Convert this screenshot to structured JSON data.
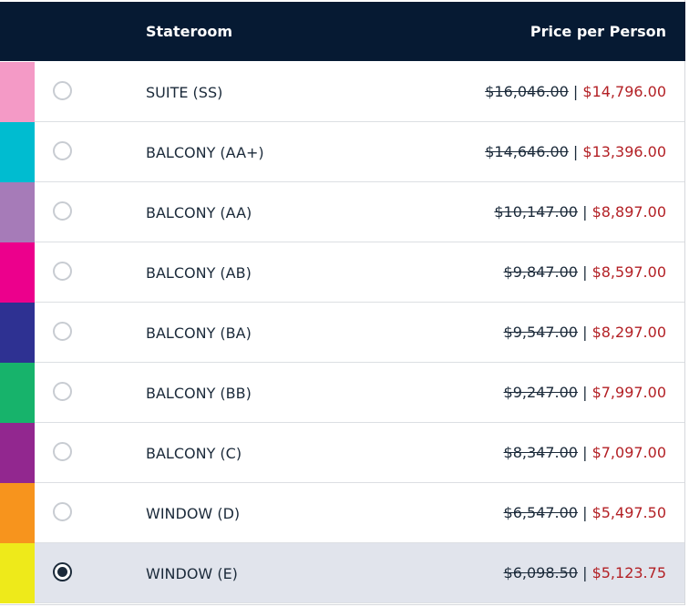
{
  "header": {
    "stateroom": "Stateroom",
    "price": "Price per Person"
  },
  "price_separator": "|",
  "rows": [
    {
      "name": "SUITE (SS)",
      "old_price": "$16,046.00",
      "new_price": "$14,796.00",
      "color": "#f49ac6",
      "selected": false
    },
    {
      "name": "BALCONY (AA+)",
      "old_price": "$14,646.00",
      "new_price": "$13,396.00",
      "color": "#00bcd0",
      "selected": false
    },
    {
      "name": "BALCONY (AA)",
      "old_price": "$10,147.00",
      "new_price": "$8,897.00",
      "color": "#a67bb8",
      "selected": false
    },
    {
      "name": "BALCONY (AB)",
      "old_price": "$9,847.00",
      "new_price": "$8,597.00",
      "color": "#ec008c",
      "selected": false
    },
    {
      "name": "BALCONY (BA)",
      "old_price": "$9,547.00",
      "new_price": "$8,297.00",
      "color": "#2e3192",
      "selected": false
    },
    {
      "name": "BALCONY (BB)",
      "old_price": "$9,247.00",
      "new_price": "$7,997.00",
      "color": "#17b36b",
      "selected": false
    },
    {
      "name": "BALCONY (C)",
      "old_price": "$8,347.00",
      "new_price": "$7,097.00",
      "color": "#92278f",
      "selected": false
    },
    {
      "name": "WINDOW (D)",
      "old_price": "$6,547.00",
      "new_price": "$5,497.50",
      "color": "#f7941d",
      "selected": false
    },
    {
      "name": "WINDOW (E)",
      "old_price": "$6,098.50",
      "new_price": "$5,123.75",
      "color": "#eeea1a",
      "selected": true
    }
  ]
}
